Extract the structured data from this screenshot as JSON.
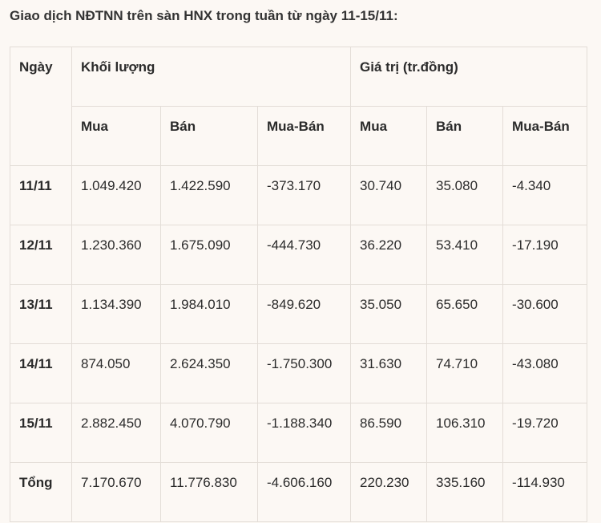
{
  "title": "Giao dịch NĐTNN trên sàn HNX trong tuần từ ngày 11-15/11:",
  "header": {
    "ngay": "Ngày",
    "khoi_luong": "Khối lượng",
    "gia_tri": "Giá trị (tr.đồng)",
    "sub": [
      "Mua",
      "Bán",
      "Mua-Bán",
      "Mua",
      "Bán",
      "Mua-Bán"
    ]
  },
  "rows": [
    [
      "11/11",
      "1.049.420",
      "1.422.590",
      "-373.170",
      "30.740",
      "35.080",
      "-4.340"
    ],
    [
      "12/11",
      "1.230.360",
      "1.675.090",
      "-444.730",
      "36.220",
      "53.410",
      "-17.190"
    ],
    [
      "13/11",
      "1.134.390",
      "1.984.010",
      "-849.620",
      "35.050",
      "65.650",
      "-30.600"
    ],
    [
      "14/11",
      "874.050",
      "2.624.350",
      "-1.750.300",
      "31.630",
      "74.710",
      "-43.080"
    ],
    [
      "15/11",
      "2.882.450",
      "4.070.790",
      "-1.188.340",
      "86.590",
      "106.310",
      "-19.720"
    ],
    [
      "Tổng",
      "7.170.670",
      "11.776.830",
      "-4.606.160",
      "220.230",
      "335.160",
      "-114.930"
    ]
  ]
}
